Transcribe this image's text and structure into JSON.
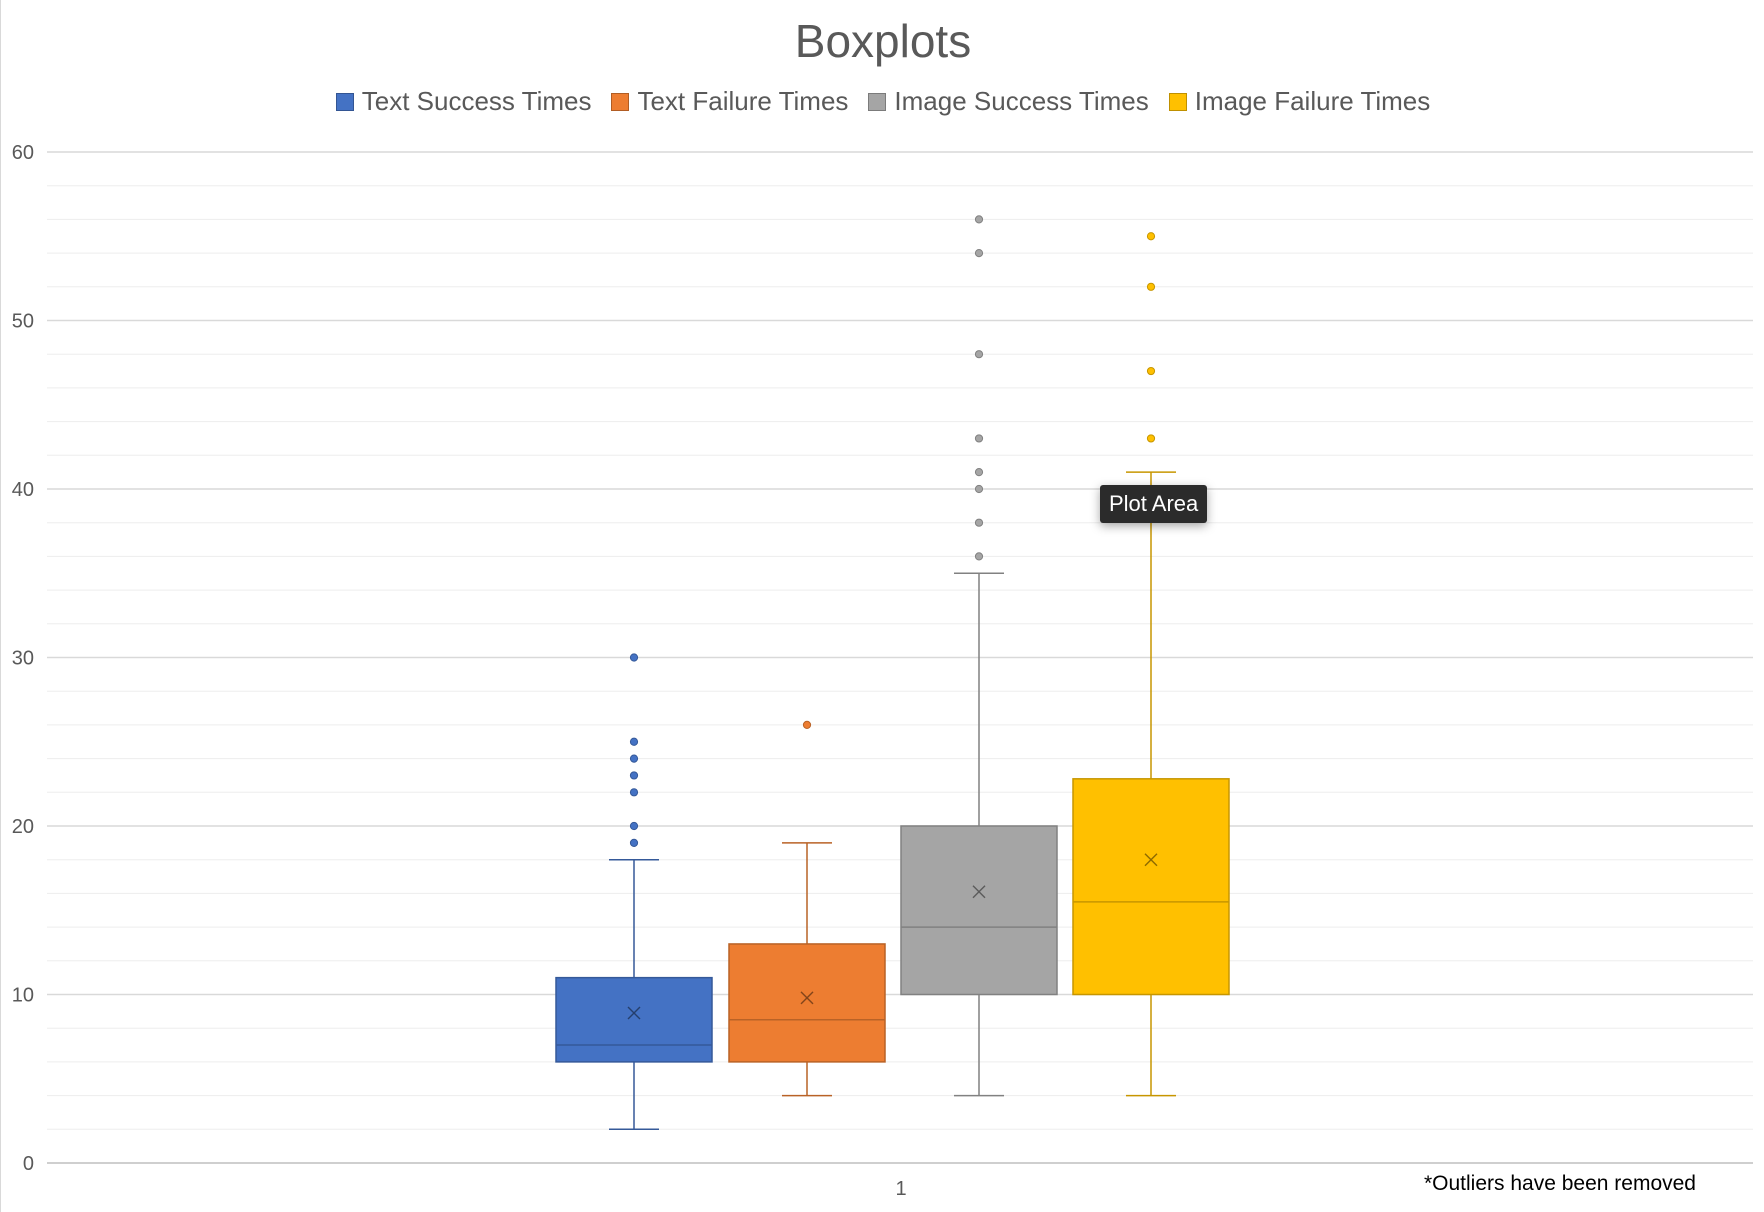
{
  "chart_data": {
    "type": "boxplot",
    "title": "Boxplots",
    "categories": [
      "1"
    ],
    "xlabel": "",
    "ylabel": "",
    "ylim": [
      0,
      60
    ],
    "yticks": [
      "0",
      "10",
      "20",
      "30",
      "40",
      "50",
      "60"
    ],
    "grid": true,
    "legend_position": "top",
    "series": [
      {
        "name": "Text Success Times",
        "color": "#4472C4",
        "min": 2,
        "q1": 6,
        "median": 7,
        "q3": 11,
        "max": 18,
        "mean": 8.9,
        "outliers": [
          19,
          20,
          22,
          23,
          24,
          25,
          30
        ]
      },
      {
        "name": "Text Failure Times",
        "color": "#ED7D31",
        "min": 4,
        "q1": 6,
        "median": 8.5,
        "q3": 13,
        "max": 19,
        "mean": 9.8,
        "outliers": [
          26
        ]
      },
      {
        "name": "Image Success Times",
        "color": "#A5A5A5",
        "min": 4,
        "q1": 10,
        "median": 14,
        "q3": 20,
        "max": 35,
        "mean": 16.1,
        "outliers": [
          36,
          38,
          40,
          41,
          43,
          48,
          54,
          56
        ]
      },
      {
        "name": "Image Failure Times",
        "color": "#FFC000",
        "min": 4,
        "q1": 10,
        "median": 15.5,
        "q3": 22.8,
        "max": 41,
        "mean": 18,
        "outliers": [
          43,
          47,
          52,
          55
        ]
      }
    ],
    "note": "*Outliers have been removed"
  },
  "tooltip": "Plot Area"
}
